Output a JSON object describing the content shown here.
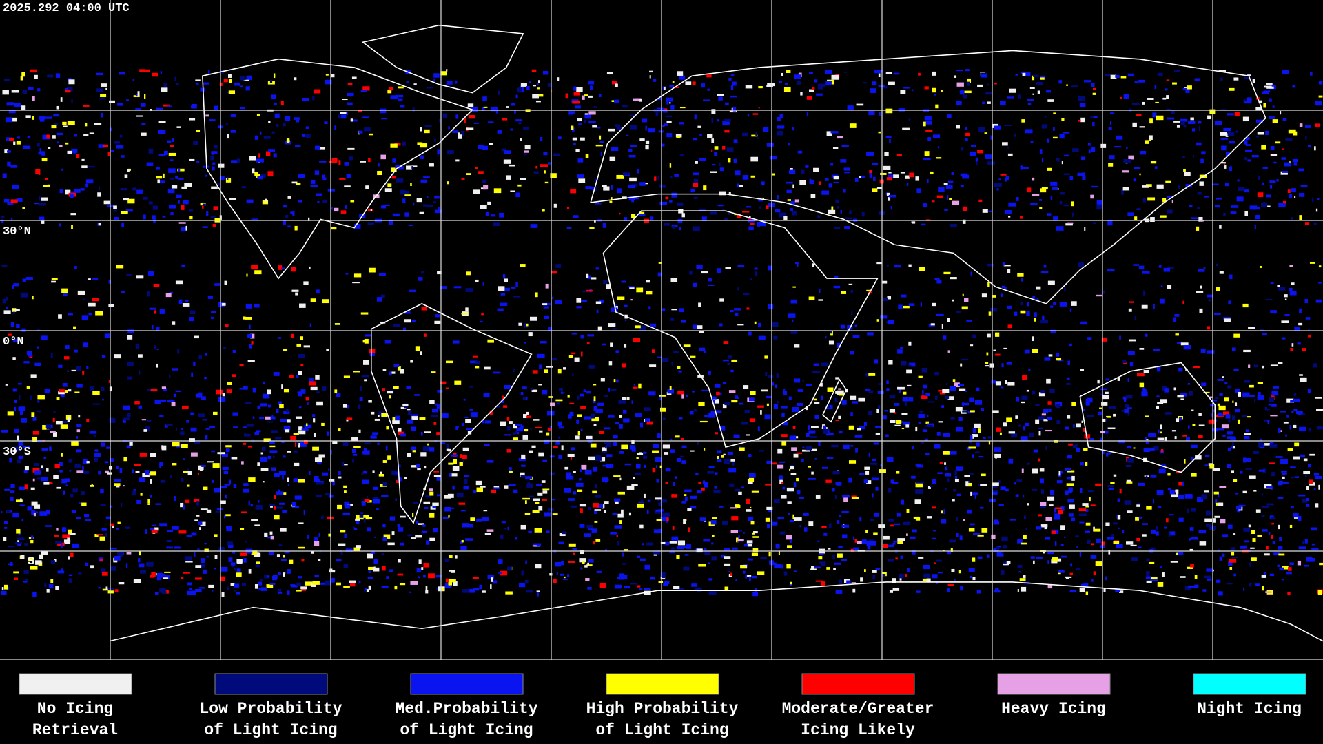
{
  "header": {
    "timestamp": "2025.292 04:00 UTC"
  },
  "latitude_labels": [
    "30°N",
    "0°N",
    "30°S",
    "S"
  ],
  "legend": {
    "items": [
      {
        "lines": [
          "No Icing",
          "Retrieval"
        ],
        "color": "#f0f0f0"
      },
      {
        "lines": [
          "Low Probability",
          "of Light Icing"
        ],
        "color": "#000a7a"
      },
      {
        "lines": [
          "Med.Probability",
          "of Light Icing"
        ],
        "color": "#0a14f0"
      },
      {
        "lines": [
          "High Probability",
          "of Light Icing"
        ],
        "color": "#ffff00"
      },
      {
        "lines": [
          "Moderate/Greater",
          "Icing Likely"
        ],
        "color": "#ff0000"
      },
      {
        "lines": [
          "Heavy Icing"
        ],
        "color": "#e6a0e6"
      },
      {
        "lines": [
          "Night Icing"
        ],
        "color": "#00ffff"
      }
    ]
  }
}
